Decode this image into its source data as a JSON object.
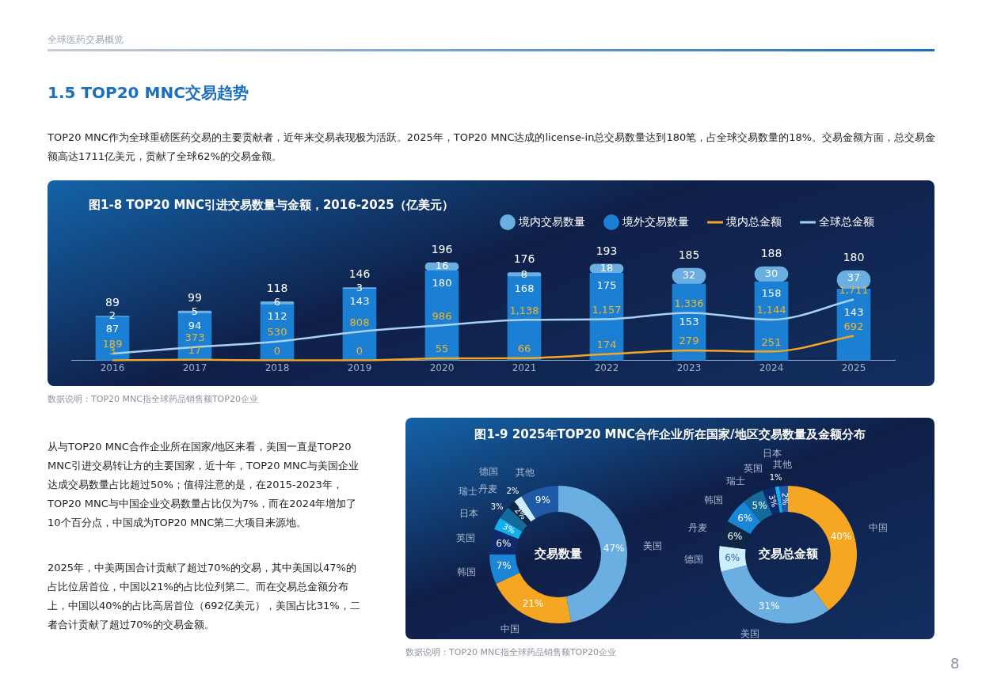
{
  "chart_data": [
    {
      "type": "bar",
      "title": "图1-8  TOP20 MNC引进交易数量与金额，2016-2025（亿美元）",
      "categories": [
        "2016",
        "2017",
        "2018",
        "2019",
        "2020",
        "2021",
        "2022",
        "2023",
        "2024",
        "2025"
      ],
      "stacked": true,
      "legend": "top right",
      "marker": "none",
      "tick_labels": "x",
      "grid": false,
      "series": [
        {
          "name": "境外交易数量",
          "color": "#1b80d4",
          "values": [
            87,
            94,
            112,
            143,
            180,
            168,
            175,
            153,
            158,
            143
          ],
          "value_labels": [
            "87",
            "94",
            "112",
            "143",
            "180",
            "168",
            "175",
            "153",
            "158",
            "143"
          ]
        },
        {
          "name": "境内交易数量",
          "color": "#6aaee2",
          "values": [
            2,
            5,
            6,
            3,
            16,
            8,
            18,
            32,
            30,
            37
          ],
          "value_labels": [
            "2",
            "5",
            "6",
            "3",
            "16",
            "8",
            "18",
            "32",
            "30",
            "37"
          ]
        },
        {
          "name": "境内总金额",
          "type": "line",
          "axis": "y2",
          "color": "#f5a623",
          "values": [
            3,
            17,
            0,
            0,
            55,
            66,
            174,
            279,
            251,
            692
          ],
          "value_labels": [
            "3",
            "17",
            "0",
            "0",
            "55",
            "66",
            "174",
            "279",
            "251",
            "692"
          ]
        },
        {
          "name": "全球总金额",
          "type": "line",
          "axis": "y2",
          "color": "#a9d1f2",
          "values": [
            189,
            373,
            530,
            808,
            986,
            1138,
            1157,
            1336,
            1144,
            1711
          ],
          "value_labels": [
            "189",
            "373",
            "530",
            "808",
            "986",
            "1,138",
            "1,157",
            "1,336",
            "1,144",
            "1,711"
          ]
        }
      ],
      "totals": [
        "89",
        "99",
        "118",
        "146",
        "196",
        "176",
        "193",
        "185",
        "188",
        "180"
      ],
      "annotations": [
        "全球医药交易概览",
        "1.5 TOP20 MNC交易趋势",
        "TOP20 MNC作为全球重磅医药交易的主要贡献者，近年来交易表现极为活跃。2025年，TOP20 MNC达成的license-in总交易数量达到180笔，占全球交易数量的18%。交易金额方面，总交易金额高达1711亿美元，贡献了全球62%的交易金额。",
        "数据说明：TOP20 MNC指全球药品销售额TOP20企业"
      ]
    },
    {
      "type": "donut",
      "title": "图1-9  2025年TOP20 MNC合作企业所在国家/地区交易数量及金额分布",
      "categories": [
        "美国",
        "中国",
        "韩国",
        "英国",
        "日本",
        "瑞士",
        "丹麦",
        "德国",
        "其他"
      ],
      "values": [
        47,
        21,
        7,
        6,
        3,
        3,
        2,
        2,
        9
      ],
      "colors": [
        "#6aaee2",
        "#f5a623",
        "#1b86d8",
        "#0d2a6b",
        "#10b0f0",
        "#146a9a",
        "#0e2748",
        "#cdeefc",
        "#1f5aa8"
      ],
      "value_labels": [
        "47%",
        "21%",
        "7%",
        "6%",
        "3%",
        "3%",
        "2%",
        "2%",
        "9%"
      ],
      "annotations": [
        "交易数量",
        "从与TOP20 MNC合作企业所在国家/地区来看，美国一直是TOP20 MNC引进交易转让方的主要国家，近十年，TOP20 MNC与美国企业达成交易数量占比超过50%；值得注意的是，在2015-2023年，TOP20 MNC与中国企业交易数量占比仅为7%，而在2024年增加了10个百分点，中国成为TOP20 MNC第二大项目来源地。",
        "2025年，中美两国合计贡献了超过70%的交易，其中美国以47%的占比位居首位，中国以21%的占比位列第二。而在交易总金额分布上，中国以40%的占比高居首位（692亿美元），美国占比31%，二者合计贡献了超过70%的交易金额。",
        "数据说明：TOP20 MNC指全球药品销售额TOP20企业"
      ]
    },
    {
      "type": "donut",
      "categories": [
        "中国",
        "美国",
        "德国",
        "丹麦",
        "韩国",
        "瑞士",
        "英国",
        "日本",
        "其他"
      ],
      "values": [
        40,
        31,
        6,
        6,
        6,
        5,
        3,
        1,
        2
      ],
      "colors": [
        "#f5a623",
        "#6aaee2",
        "#cdeefc",
        "#0e2748",
        "#1b86d8",
        "#146a9a",
        "#0d2a6b",
        "#10b0f0",
        "#1f5aa8"
      ],
      "value_labels": [
        "40%",
        "31%",
        "6%",
        "6%",
        "6%",
        "5%",
        "3%",
        "1%",
        "2%"
      ],
      "annotations": [
        "交易总金额",
        "8"
      ]
    }
  ]
}
